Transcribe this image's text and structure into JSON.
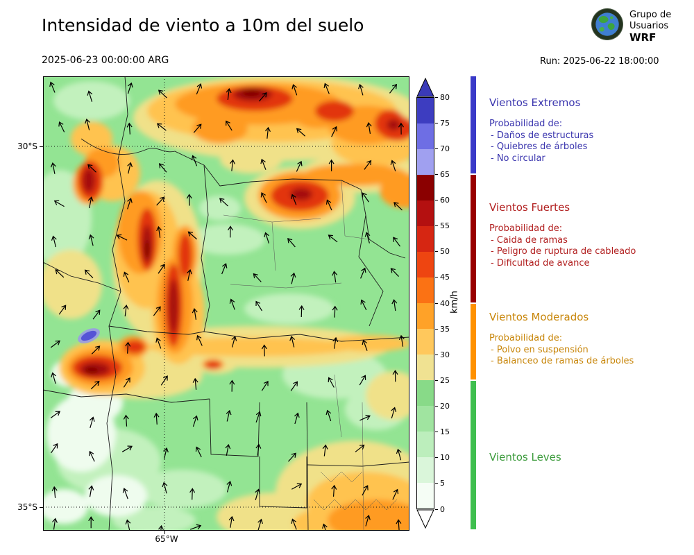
{
  "header": {
    "title": "Intensidad de viento a 10m del suelo",
    "datetime": "2025-06-23 00:00:00 ARG",
    "run_label": "Run: 2025-06-22 18:00:00",
    "logo": {
      "line1": "Grupo de",
      "line2": "Usuarios",
      "line3": "WRF"
    }
  },
  "map": {
    "lat_labels": [
      "30°S",
      "35°S"
    ],
    "lon_label": "65°W"
  },
  "colorbar": {
    "unit": "km/h",
    "ticks": [
      "80",
      "75",
      "70",
      "65",
      "60",
      "55",
      "50",
      "45",
      "40",
      "35",
      "30",
      "25",
      "20",
      "15",
      "10",
      "5",
      "0"
    ],
    "segment_colors_top_to_bottom": [
      "#3d3dc0",
      "#6e6ee4",
      "#a0a0f0",
      "#8b0000",
      "#b41010",
      "#d62612",
      "#ee4511",
      "#fb7214",
      "#ffa228",
      "#ffc85c",
      "#f0e292",
      "#88da88",
      "#a0e4a0",
      "#bceebc",
      "#daf6da",
      "#f5fdf5"
    ],
    "over_arrow_color": "#3a3ab8",
    "under_arrow_color": "#ffffff"
  },
  "legend": {
    "probability_label": "Probabilidad de:",
    "categories": [
      {
        "name": "Vientos Extremos",
        "color": "#3a35ae",
        "bar_color": "#3a3ac8",
        "items": [
          "- Daños de estructuras",
          "- Quiebres de árboles",
          "- No circular"
        ]
      },
      {
        "name": "Vientos Fuertes",
        "color": "#b22020",
        "bar_color": "#990000",
        "items": [
          "- Caida de ramas",
          "- Peligro de ruptura de cableado",
          "- Dificultad de avance"
        ]
      },
      {
        "name": "Vientos Moderados",
        "color": "#c8860a",
        "bar_color": "#ff9100",
        "items": [
          "- Polvo en suspensión",
          "- Balanceo de ramas de árboles"
        ]
      },
      {
        "name": "Vientos Leves",
        "color": "#3c9b3c",
        "bar_color": "#3fbf4f",
        "items": []
      }
    ]
  }
}
